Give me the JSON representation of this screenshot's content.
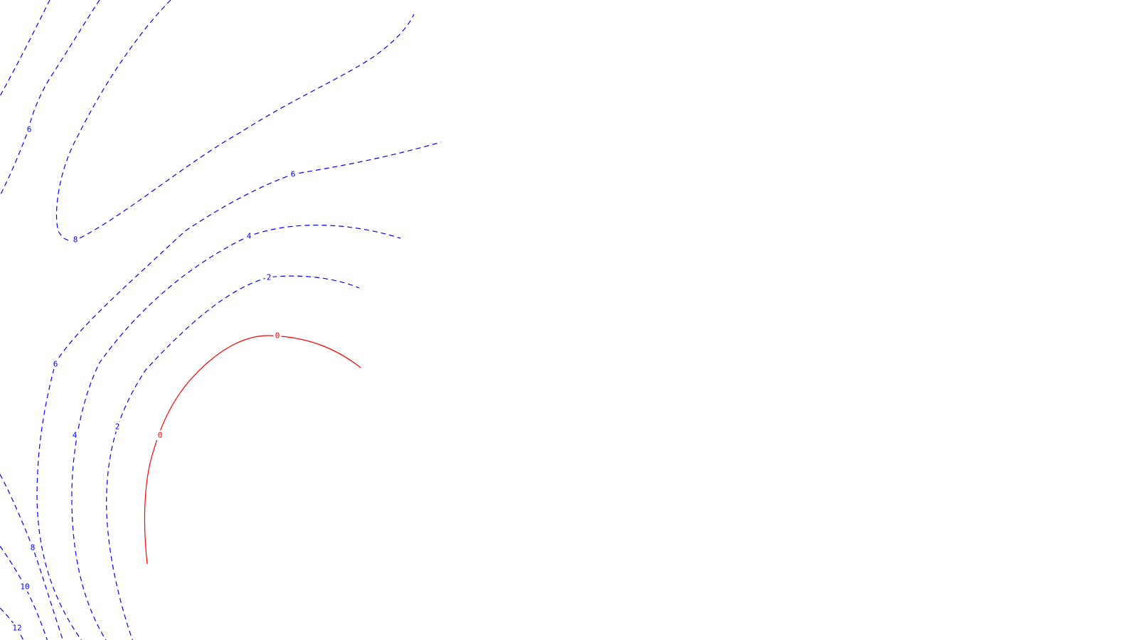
{
  "chart_data": {
    "type": "contour",
    "title": "",
    "xlabel": "",
    "ylabel": "",
    "grid": false,
    "legend": "none",
    "styles": {
      "positive": {
        "color": "#0000ff",
        "dash": "dashed"
      },
      "zero": {
        "color": "#ff0000",
        "dash": "solid"
      }
    },
    "levels": [
      {
        "value": 12,
        "label": "12"
      },
      {
        "value": 10,
        "label": "10"
      },
      {
        "value": 8,
        "label": "8"
      },
      {
        "value": 8,
        "label": "8"
      },
      {
        "value": 6,
        "label": "6"
      },
      {
        "value": 6,
        "label": "6"
      },
      {
        "value": 6,
        "label": "6"
      },
      {
        "value": 4,
        "label": "4"
      },
      {
        "value": 4,
        "label": "4"
      },
      {
        "value": 2,
        "label": "2"
      },
      {
        "value": 2,
        "label": "2"
      },
      {
        "value": 0,
        "label": "0"
      },
      {
        "value": 0,
        "label": "0"
      }
    ]
  }
}
